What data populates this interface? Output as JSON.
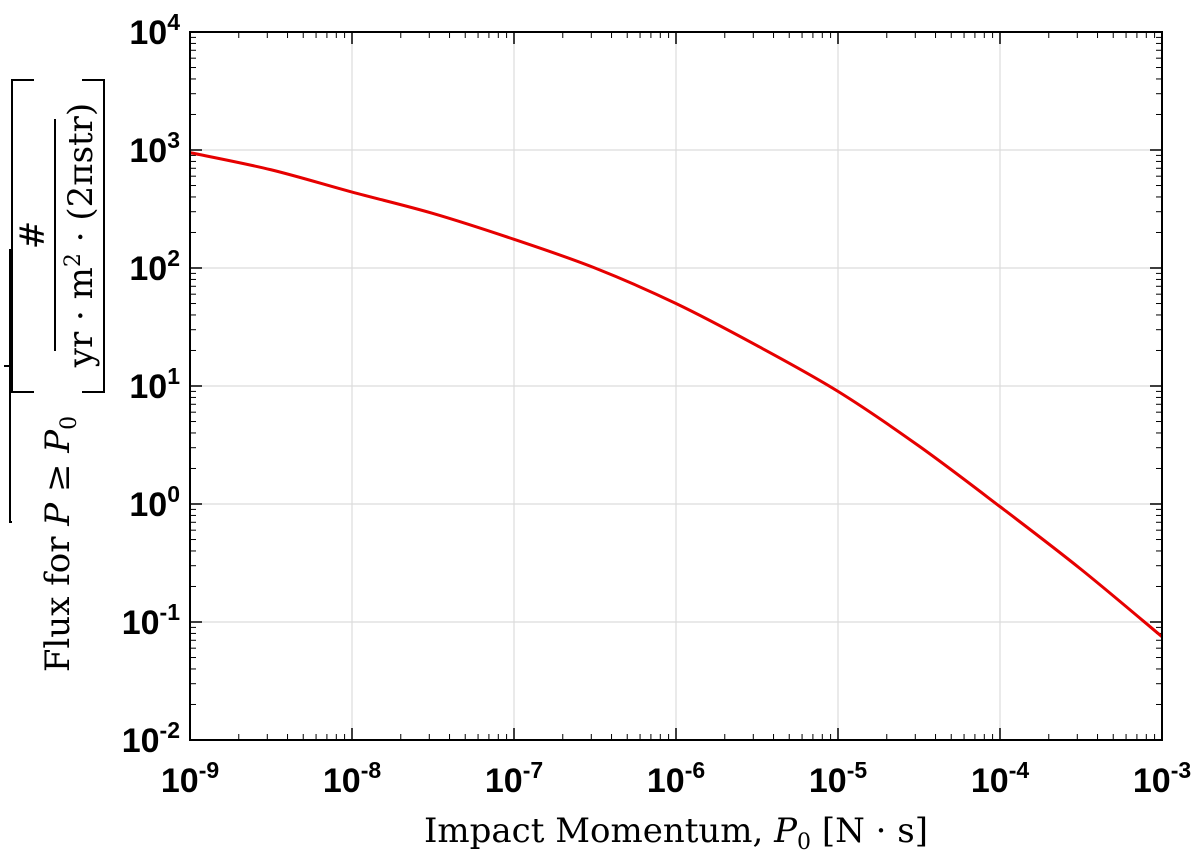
{
  "chart_data": {
    "type": "line",
    "xscale": "log",
    "yscale": "log",
    "xlim": [
      1e-09,
      0.001
    ],
    "ylim": [
      0.01,
      10000
    ],
    "grid": true,
    "xticks": [
      "10^-9",
      "10^-8",
      "10^-7",
      "10^-6",
      "10^-5",
      "10^-4",
      "10^-3"
    ],
    "yticks": [
      "10^-2",
      "10^-1",
      "10^0",
      "10^1",
      "10^2",
      "10^3",
      "10^4"
    ],
    "xlabel": {
      "text": "Impact Momentum, ",
      "var": "P",
      "var_sub": "0",
      "units": " [N · s]"
    },
    "ylabel": {
      "prefix": "Flux for ",
      "var": "P",
      "rel": " ≥ ",
      "var2": "P",
      "var2_sub": "0",
      "numerator": "#",
      "denominator": "yr · m",
      "denominator_exp": "2",
      "denominator_tail": " · (2πstr)"
    },
    "series": [
      {
        "color": "#e60000",
        "x": [
          1e-09,
          3.16e-09,
          1e-08,
          3.16e-08,
          1e-07,
          3.16e-07,
          1e-06,
          3.16e-06,
          1e-05,
          3.16e-05,
          0.0001,
          0.000316,
          0.001
        ],
        "y": [
          950,
          680,
          440,
          290,
          175,
          100,
          50,
          22,
          9,
          3.1,
          0.95,
          0.28,
          0.075
        ]
      }
    ]
  }
}
